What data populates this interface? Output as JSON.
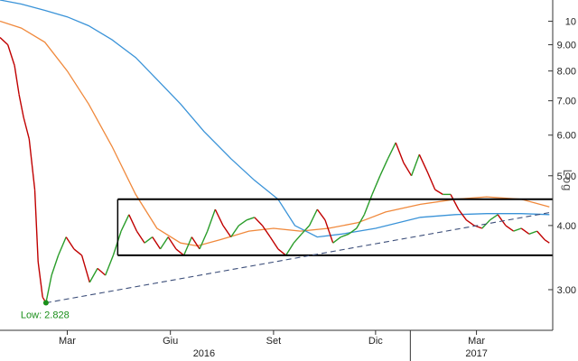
{
  "chart_data": {
    "type": "line",
    "scale": "log",
    "title": "",
    "xlabel": "",
    "ylabel": "",
    "y_axis_side": "right",
    "ylim": [
      2.5,
      11.0
    ],
    "y_ticks": [
      3.0,
      4.0,
      5.0,
      6.0,
      7.0,
      8.0,
      9.0,
      10.0
    ],
    "y_tick_labels": [
      "3.00",
      "4.00",
      "5.00",
      "6.00",
      "7.00",
      "8.00",
      "9.00",
      "10"
    ],
    "log_scale_label": "Log",
    "x_range": [
      "2016-01-01",
      "2017-05-08"
    ],
    "x_month_labels": [
      {
        "label": "Mar",
        "date": "2016-03-01"
      },
      {
        "label": "Giu",
        "date": "2016-06-01"
      },
      {
        "label": "Set",
        "date": "2016-09-01"
      },
      {
        "label": "Dic",
        "date": "2016-12-01"
      },
      {
        "label": "Mar",
        "date": "2017-03-01"
      }
    ],
    "x_year_labels": [
      {
        "label": "2016",
        "date": "2016-07-01"
      },
      {
        "label": "2017",
        "date": "2017-03-01"
      }
    ],
    "price_series": {
      "name": "",
      "color": "#c00000",
      "up_color": "#2a9d2a",
      "points": [
        [
          "2016-01-01",
          9.3
        ],
        [
          "2016-01-08",
          9.0
        ],
        [
          "2016-01-14",
          8.2
        ],
        [
          "2016-01-18",
          7.2
        ],
        [
          "2016-01-22",
          6.5
        ],
        [
          "2016-01-27",
          5.9
        ],
        [
          "2016-02-01",
          4.7
        ],
        [
          "2016-02-04",
          3.4
        ],
        [
          "2016-02-08",
          2.9
        ],
        [
          "2016-02-11",
          2.828
        ],
        [
          "2016-02-16",
          3.2
        ],
        [
          "2016-02-22",
          3.5
        ],
        [
          "2016-02-29",
          3.8
        ],
        [
          "2016-03-07",
          3.6
        ],
        [
          "2016-03-14",
          3.5
        ],
        [
          "2016-03-21",
          3.1
        ],
        [
          "2016-03-28",
          3.3
        ],
        [
          "2016-04-04",
          3.2
        ],
        [
          "2016-04-11",
          3.5
        ],
        [
          "2016-04-18",
          3.9
        ],
        [
          "2016-04-25",
          4.2
        ],
        [
          "2016-05-02",
          3.9
        ],
        [
          "2016-05-09",
          3.7
        ],
        [
          "2016-05-16",
          3.8
        ],
        [
          "2016-05-23",
          3.6
        ],
        [
          "2016-05-30",
          3.8
        ],
        [
          "2016-06-06",
          3.6
        ],
        [
          "2016-06-13",
          3.5
        ],
        [
          "2016-06-20",
          3.8
        ],
        [
          "2016-06-27",
          3.6
        ],
        [
          "2016-07-04",
          3.9
        ],
        [
          "2016-07-11",
          4.3
        ],
        [
          "2016-07-18",
          4.0
        ],
        [
          "2016-07-25",
          3.8
        ],
        [
          "2016-08-01",
          4.0
        ],
        [
          "2016-08-08",
          4.1
        ],
        [
          "2016-08-15",
          4.15
        ],
        [
          "2016-08-22",
          4.0
        ],
        [
          "2016-08-29",
          3.8
        ],
        [
          "2016-09-05",
          3.6
        ],
        [
          "2016-09-12",
          3.5
        ],
        [
          "2016-09-19",
          3.7
        ],
        [
          "2016-09-26",
          3.85
        ],
        [
          "2016-10-03",
          4.0
        ],
        [
          "2016-10-10",
          4.3
        ],
        [
          "2016-10-17",
          4.1
        ],
        [
          "2016-10-24",
          3.7
        ],
        [
          "2016-10-31",
          3.8
        ],
        [
          "2016-11-07",
          3.85
        ],
        [
          "2016-11-14",
          3.95
        ],
        [
          "2016-11-21",
          4.2
        ],
        [
          "2016-11-28",
          4.6
        ],
        [
          "2016-12-05",
          5.0
        ],
        [
          "2016-12-12",
          5.4
        ],
        [
          "2016-12-19",
          5.8
        ],
        [
          "2016-12-26",
          5.3
        ],
        [
          "2017-01-02",
          5.0
        ],
        [
          "2017-01-09",
          5.5
        ],
        [
          "2017-01-16",
          5.1
        ],
        [
          "2017-01-23",
          4.7
        ],
        [
          "2017-01-30",
          4.6
        ],
        [
          "2017-02-06",
          4.6
        ],
        [
          "2017-02-13",
          4.3
        ],
        [
          "2017-02-20",
          4.1
        ],
        [
          "2017-02-27",
          4.0
        ],
        [
          "2017-03-06",
          3.95
        ],
        [
          "2017-03-13",
          4.1
        ],
        [
          "2017-03-20",
          4.2
        ],
        [
          "2017-03-27",
          4.0
        ],
        [
          "2017-04-03",
          3.9
        ],
        [
          "2017-04-10",
          3.95
        ],
        [
          "2017-04-17",
          3.85
        ],
        [
          "2017-04-24",
          3.9
        ],
        [
          "2017-05-01",
          3.75
        ],
        [
          "2017-05-05",
          3.7
        ]
      ]
    },
    "moving_average_series": [
      {
        "name": "",
        "color": "#f0893c",
        "points": [
          [
            "2016-01-01",
            10.0
          ],
          [
            "2016-01-20",
            9.7
          ],
          [
            "2016-02-10",
            9.1
          ],
          [
            "2016-03-01",
            8.0
          ],
          [
            "2016-03-20",
            6.9
          ],
          [
            "2016-04-10",
            5.7
          ],
          [
            "2016-05-01",
            4.6
          ],
          [
            "2016-05-20",
            3.95
          ],
          [
            "2016-06-10",
            3.7
          ],
          [
            "2016-06-25",
            3.65
          ],
          [
            "2016-07-15",
            3.75
          ],
          [
            "2016-08-10",
            3.9
          ],
          [
            "2016-09-01",
            3.95
          ],
          [
            "2016-09-25",
            3.9
          ],
          [
            "2016-10-20",
            3.95
          ],
          [
            "2016-11-15",
            4.05
          ],
          [
            "2016-12-10",
            4.25
          ],
          [
            "2017-01-10",
            4.4
          ],
          [
            "2017-02-10",
            4.5
          ],
          [
            "2017-03-10",
            4.55
          ],
          [
            "2017-04-10",
            4.5
          ],
          [
            "2017-05-05",
            4.35
          ]
        ]
      },
      {
        "name": "",
        "color": "#3a93d8",
        "points": [
          [
            "2016-01-01",
            11.0
          ],
          [
            "2016-01-20",
            10.8
          ],
          [
            "2016-02-10",
            10.5
          ],
          [
            "2016-03-01",
            10.2
          ],
          [
            "2016-03-20",
            9.8
          ],
          [
            "2016-04-10",
            9.2
          ],
          [
            "2016-05-01",
            8.5
          ],
          [
            "2016-05-20",
            7.7
          ],
          [
            "2016-06-10",
            6.9
          ],
          [
            "2016-07-01",
            6.1
          ],
          [
            "2016-07-25",
            5.4
          ],
          [
            "2016-08-15",
            4.9
          ],
          [
            "2016-09-05",
            4.5
          ],
          [
            "2016-09-20",
            4.0
          ],
          [
            "2016-10-10",
            3.8
          ],
          [
            "2016-11-01",
            3.85
          ],
          [
            "2016-12-01",
            3.95
          ],
          [
            "2017-01-10",
            4.15
          ],
          [
            "2017-02-10",
            4.2
          ],
          [
            "2017-03-10",
            4.22
          ],
          [
            "2017-04-10",
            4.22
          ],
          [
            "2017-05-05",
            4.2
          ]
        ]
      }
    ],
    "range_box": {
      "x_start": "2016-04-15",
      "x_end": "2017-05-08",
      "y_low": 3.5,
      "y_high": 4.5,
      "color": "#000000"
    },
    "trendline": {
      "x_start": "2016-02-11",
      "y_start": 2.828,
      "x_end": "2017-05-08",
      "y_end": 4.25,
      "color": "#3d4f7a",
      "style": "dashed"
    },
    "low_annotation": {
      "label": "Low: 2.828",
      "date": "2016-02-11",
      "value": 2.828
    },
    "grid": false,
    "legend": "none"
  }
}
